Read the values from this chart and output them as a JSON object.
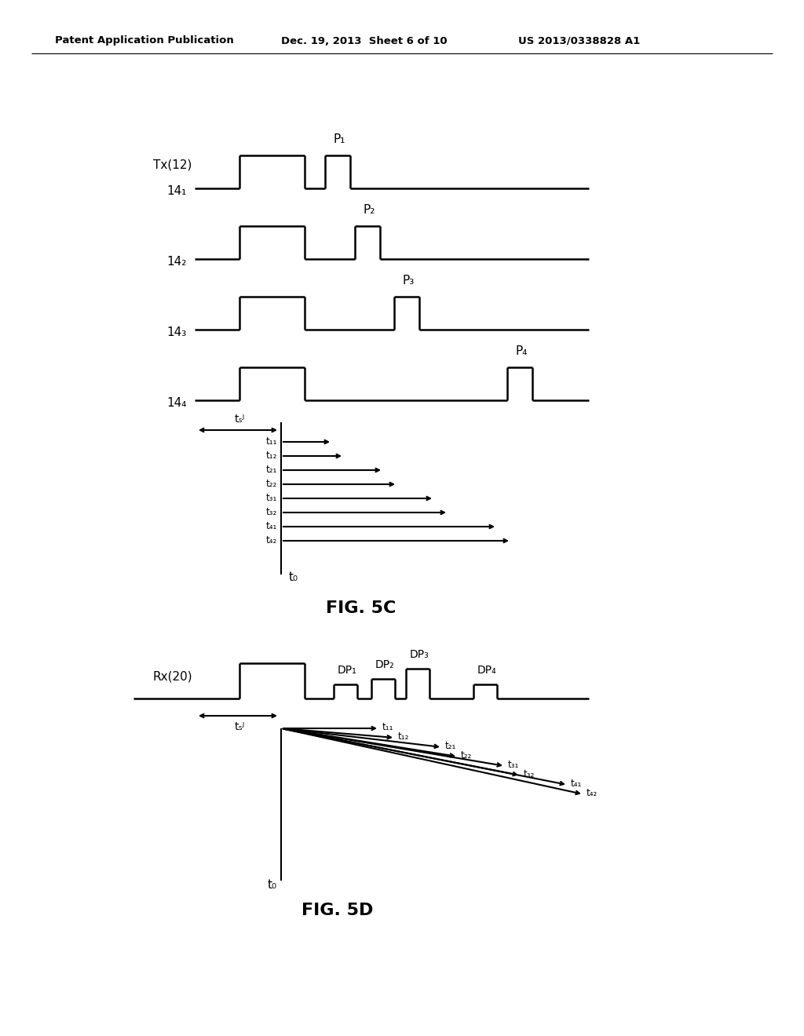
{
  "header_left": "Patent Application Publication",
  "header_mid": "Dec. 19, 2013  Sheet 6 of 10",
  "header_right": "US 2013/0338828 A1",
  "fig5c_label": "FIG. 5C",
  "fig5d_label": "FIG. 5D",
  "bg_color": "#ffffff",
  "line_color": "#000000",
  "tx_label": "Tx(12)",
  "rx_label": "Rx(20)",
  "channel_labels": [
    "14₁",
    "14₂",
    "14₃",
    "14₄"
  ],
  "pulse_labels_tx": [
    "P₁",
    "P₂",
    "P₃",
    "P₄"
  ],
  "pulse_labels_rx": [
    "DP₁",
    "DP₂",
    "DP₃",
    "DP₄"
  ],
  "timing_labels": [
    "t₁₁",
    "t₁₂",
    "t₂₁",
    "t₂₂",
    "t₃₁",
    "t₃₂",
    "t₄₁",
    "t₄₂"
  ]
}
